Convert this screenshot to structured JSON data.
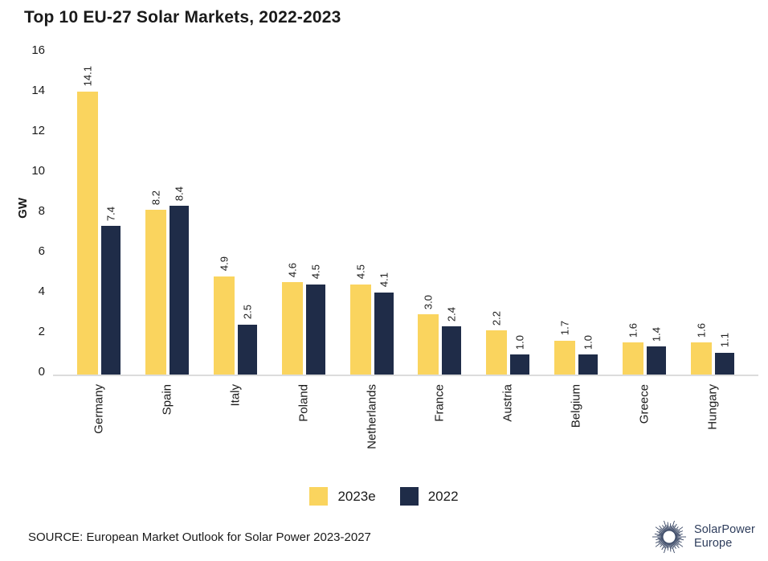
{
  "title": "Top 10 EU-27 Solar Markets, 2022-2023",
  "chart_data": {
    "type": "bar",
    "title": "Top 10 EU-27 Solar Markets, 2022-2023",
    "categories": [
      "Germany",
      "Spain",
      "Italy",
      "Poland",
      "Netherlands",
      "France",
      "Austria",
      "Belgium",
      "Greece",
      "Hungary"
    ],
    "series": [
      {
        "name": "2023e",
        "color": "#FAD45E",
        "values": [
          14.1,
          8.2,
          4.9,
          4.6,
          4.5,
          3.0,
          2.2,
          1.7,
          1.6,
          1.6
        ]
      },
      {
        "name": "2022",
        "color": "#1F2C48",
        "values": [
          7.4,
          8.4,
          2.5,
          4.5,
          4.1,
          2.4,
          1.0,
          1.0,
          1.4,
          1.1
        ]
      }
    ],
    "xlabel": "",
    "ylabel": "GW",
    "ylim": [
      0,
      16
    ],
    "yticks": [
      0,
      2,
      4,
      6,
      8,
      10,
      12,
      14,
      16
    ],
    "grid": false,
    "legend_position": "bottom",
    "value_label_decimals": 1
  },
  "legend": {
    "items": [
      {
        "label": "2023e",
        "color": "#FAD45E"
      },
      {
        "label": "2022",
        "color": "#1F2C48"
      }
    ]
  },
  "footer": {
    "source": "SOURCE: European Market Outlook for Solar Power 2023-2027",
    "logo": {
      "icon": "sunburst-icon",
      "line1": "SolarPower",
      "line2": "Europe",
      "color": "#2e3d5c"
    }
  },
  "colors": {
    "background": "#ffffff",
    "accent_yellow": "#FAD45E",
    "accent_navy": "#1F2C48",
    "axis_line": "#dcdcdc",
    "text": "#1a1a1a"
  }
}
